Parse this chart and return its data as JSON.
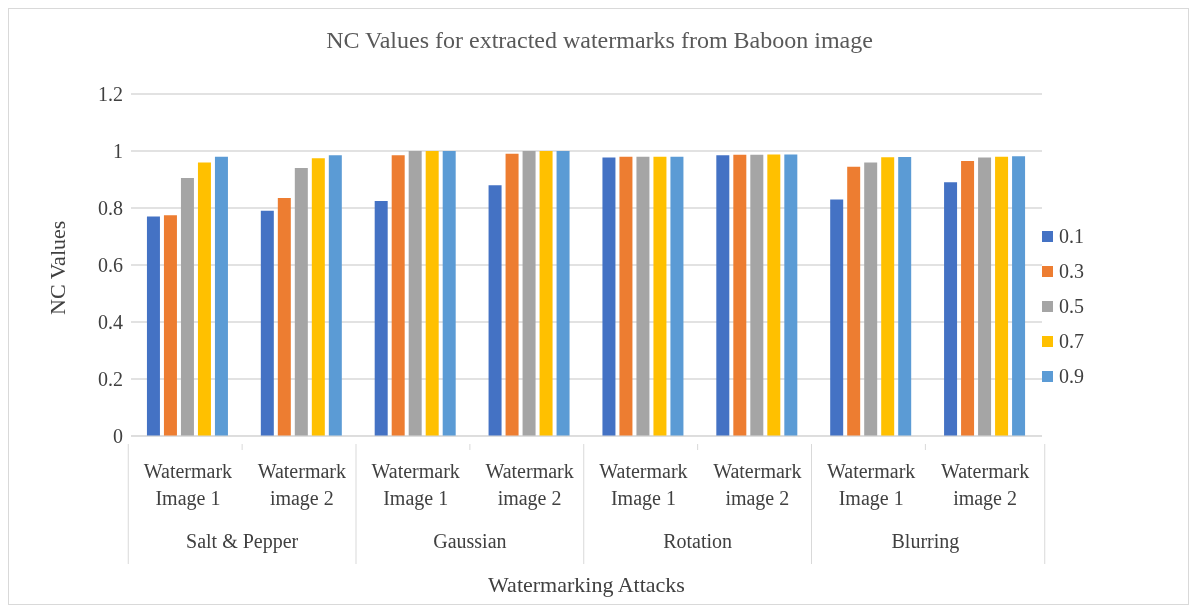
{
  "chart_data": {
    "type": "bar",
    "title": "NC Values for extracted watermarks from Baboon image",
    "xlabel": "Watermarking Attacks",
    "ylabel": "NC Values",
    "categories": [
      "Watermark Image 1",
      "Watermark image 2",
      "Watermark Image 1",
      "Watermark image 2",
      "Watermark Image 1",
      "Watermark image 2",
      "Watermark Image 1",
      "Watermark image 2"
    ],
    "annotations": [
      "Salt & Pepper",
      "Gaussian",
      "Rotation",
      "Blurring"
    ],
    "series": [
      {
        "name": "0.1",
        "color": "#4472c4",
        "values": [
          0.77,
          0.79,
          0.825,
          0.88,
          0.977,
          0.985,
          0.83,
          0.89
        ]
      },
      {
        "name": "0.3",
        "color": "#ed7d31",
        "values": [
          0.775,
          0.835,
          0.985,
          0.99,
          0.98,
          0.987,
          0.945,
          0.965
        ]
      },
      {
        "name": "0.5",
        "color": "#a5a5a5",
        "values": [
          0.905,
          0.94,
          1,
          1,
          0.98,
          0.987,
          0.96,
          0.977
        ]
      },
      {
        "name": "0.7",
        "color": "#ffc000",
        "values": [
          0.96,
          0.975,
          1,
          1,
          0.98,
          0.988,
          0.978,
          0.98
        ]
      },
      {
        "name": "0.9",
        "color": "#5b9bd5",
        "values": [
          0.98,
          0.985,
          1,
          1,
          0.98,
          0.988,
          0.979,
          0.982
        ]
      }
    ],
    "ylim": [
      0,
      1.2
    ],
    "yticks": [
      0,
      0.2,
      0.4,
      0.6,
      0.8,
      1,
      1.2
    ],
    "grid": "y",
    "legend": "right"
  }
}
